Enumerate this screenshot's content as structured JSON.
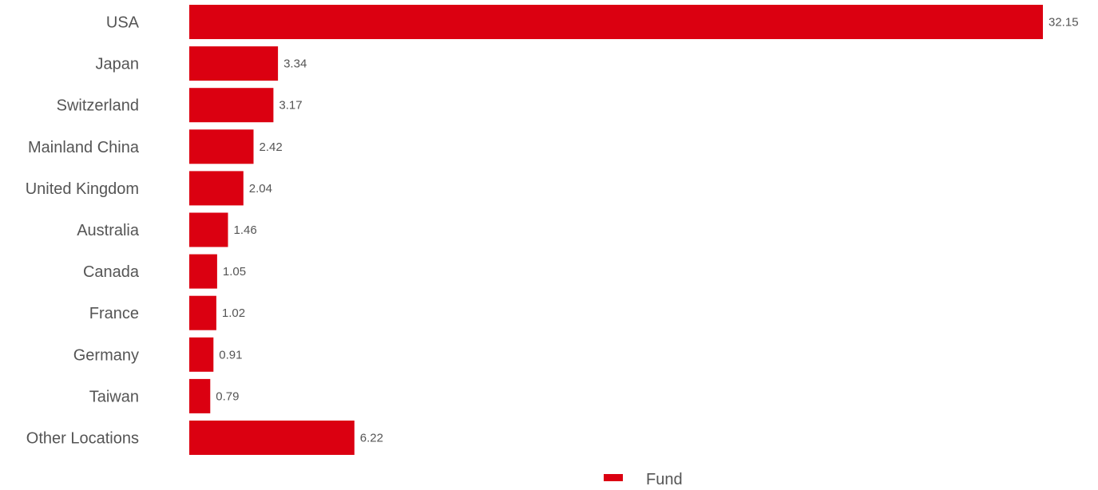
{
  "chart_data": {
    "type": "bar",
    "orientation": "horizontal",
    "categories": [
      "USA",
      "Japan",
      "Switzerland",
      "Mainland China",
      "United Kingdom",
      "Australia",
      "Canada",
      "France",
      "Germany",
      "Taiwan",
      "Other Locations"
    ],
    "series": [
      {
        "name": "Fund",
        "values": [
          32.15,
          3.34,
          3.17,
          2.42,
          2.04,
          1.46,
          1.05,
          1.02,
          0.91,
          0.79,
          6.22
        ],
        "value_labels": [
          "32.15",
          "3.34",
          "3.17",
          "2.42",
          "2.04",
          "1.46",
          "1.05",
          "1.02",
          "0.91",
          "0.79",
          "6.22"
        ],
        "color": "#db0011"
      }
    ],
    "xlim": [
      0,
      32.15
    ],
    "grid": false,
    "legend": "bottom-center"
  }
}
